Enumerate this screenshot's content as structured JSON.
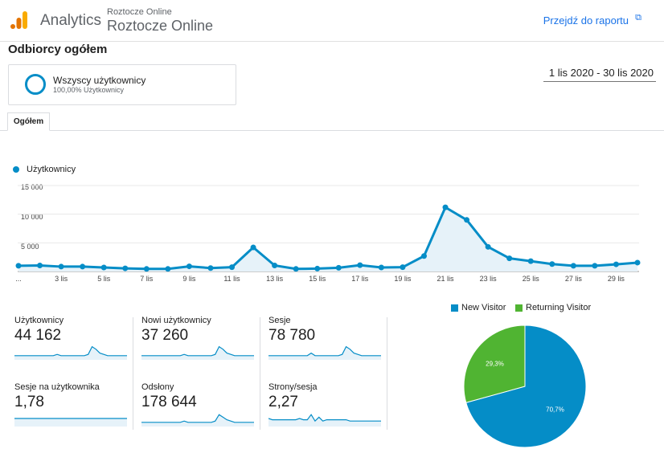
{
  "header": {
    "app_name": "Analytics",
    "account_sub": "Roztocze Online",
    "account_main": "Roztocze Online",
    "report_link": "Przejdź do raportu",
    "icons": [
      "analytics-logo-icon",
      "external-link-icon"
    ]
  },
  "section": {
    "title": "Odbiorcy ogółem"
  },
  "segment": {
    "name": "Wszyscy użytkownicy",
    "sub": "100,00% Użytkownicy"
  },
  "date_range": "1 lis 2020 - 30 lis 2020",
  "tabs": [
    {
      "label": "Ogółem"
    }
  ],
  "chart_data": [
    {
      "type": "area",
      "legend": "Użytkownicy",
      "color": "#058dc7",
      "x_tick_labels": [
        "...",
        "3 lis",
        "5 lis",
        "7 lis",
        "9 lis",
        "11 lis",
        "13 lis",
        "15 lis",
        "17 lis",
        "19 lis",
        "21 lis",
        "23 lis",
        "25 lis",
        "27 lis",
        "29 lis"
      ],
      "y_tick_labels": [
        "15 000",
        "10 000",
        "5 000"
      ],
      "ylim": [
        0,
        15000
      ],
      "x": [
        "1 lis",
        "2 lis",
        "3 lis",
        "4 lis",
        "5 lis",
        "6 lis",
        "7 lis",
        "8 lis",
        "9 lis",
        "10 lis",
        "11 lis",
        "12 lis",
        "13 lis",
        "14 lis",
        "15 lis",
        "16 lis",
        "17 lis",
        "18 lis",
        "19 lis",
        "20 lis",
        "21 lis",
        "22 lis",
        "23 lis",
        "24 lis",
        "25 lis",
        "26 lis",
        "27 lis",
        "28 lis",
        "29 lis",
        "30 lis"
      ],
      "values": [
        1000,
        1050,
        850,
        850,
        700,
        550,
        450,
        450,
        900,
        600,
        750,
        4200,
        1050,
        450,
        500,
        650,
        1100,
        700,
        750,
        2700,
        11200,
        9000,
        4300,
        2300,
        1800,
        1300,
        1000,
        1000,
        1250,
        1550
      ]
    },
    {
      "type": "pie",
      "series": [
        {
          "name": "New Visitor",
          "value": 70.7,
          "label": "70,7%",
          "color": "#058dc7"
        },
        {
          "name": "Returning Visitor",
          "value": 29.3,
          "label": "29,3%",
          "color": "#50b432"
        }
      ]
    }
  ],
  "metrics": [
    {
      "label": "Użytkownicy",
      "value": "44 162",
      "spark": [
        2,
        2,
        2,
        2,
        2,
        2,
        2,
        2,
        2,
        2,
        2,
        3,
        2,
        2,
        2,
        2,
        2,
        2,
        2,
        3,
        9,
        7,
        4,
        3,
        2,
        2,
        2,
        2,
        2,
        2
      ]
    },
    {
      "label": "Nowi użytkownicy",
      "value": "37 260",
      "spark": [
        2,
        2,
        2,
        2,
        2,
        2,
        2,
        2,
        2,
        2,
        2,
        3,
        2,
        2,
        2,
        2,
        2,
        2,
        2,
        3,
        9,
        7,
        4,
        3,
        2,
        2,
        2,
        2,
        2,
        2
      ]
    },
    {
      "label": "Sesje",
      "value": "78 780",
      "spark": [
        2,
        2,
        2,
        2,
        2,
        2,
        2,
        2,
        2,
        2,
        2,
        4,
        2,
        2,
        2,
        2,
        2,
        2,
        2,
        3,
        9,
        7,
        4,
        3,
        2,
        2,
        2,
        2,
        2,
        2
      ]
    },
    {
      "label": "Sesje na użytkownika",
      "value": "1,78",
      "spark": [
        5,
        5,
        5,
        5,
        5,
        5,
        5,
        5,
        5,
        5,
        5,
        5,
        5,
        5,
        5,
        5,
        5,
        5,
        5,
        5,
        5,
        5,
        5,
        5,
        5,
        5,
        5,
        5,
        5,
        5
      ]
    },
    {
      "label": "Odsłony",
      "value": "178 644",
      "spark": [
        2,
        2,
        2,
        2,
        2,
        2,
        2,
        2,
        2,
        2,
        2,
        3,
        2,
        2,
        2,
        2,
        2,
        2,
        2,
        3,
        8,
        6,
        4,
        3,
        2,
        2,
        2,
        2,
        2,
        2
      ]
    },
    {
      "label": "Strony/sesja",
      "value": "2,27",
      "spark": [
        5,
        4,
        4,
        4,
        4,
        4,
        4,
        4,
        5,
        4,
        4,
        8,
        3,
        6,
        3,
        4,
        4,
        4,
        4,
        4,
        4,
        3,
        3,
        3,
        3,
        3,
        3,
        3,
        3,
        3
      ]
    }
  ]
}
